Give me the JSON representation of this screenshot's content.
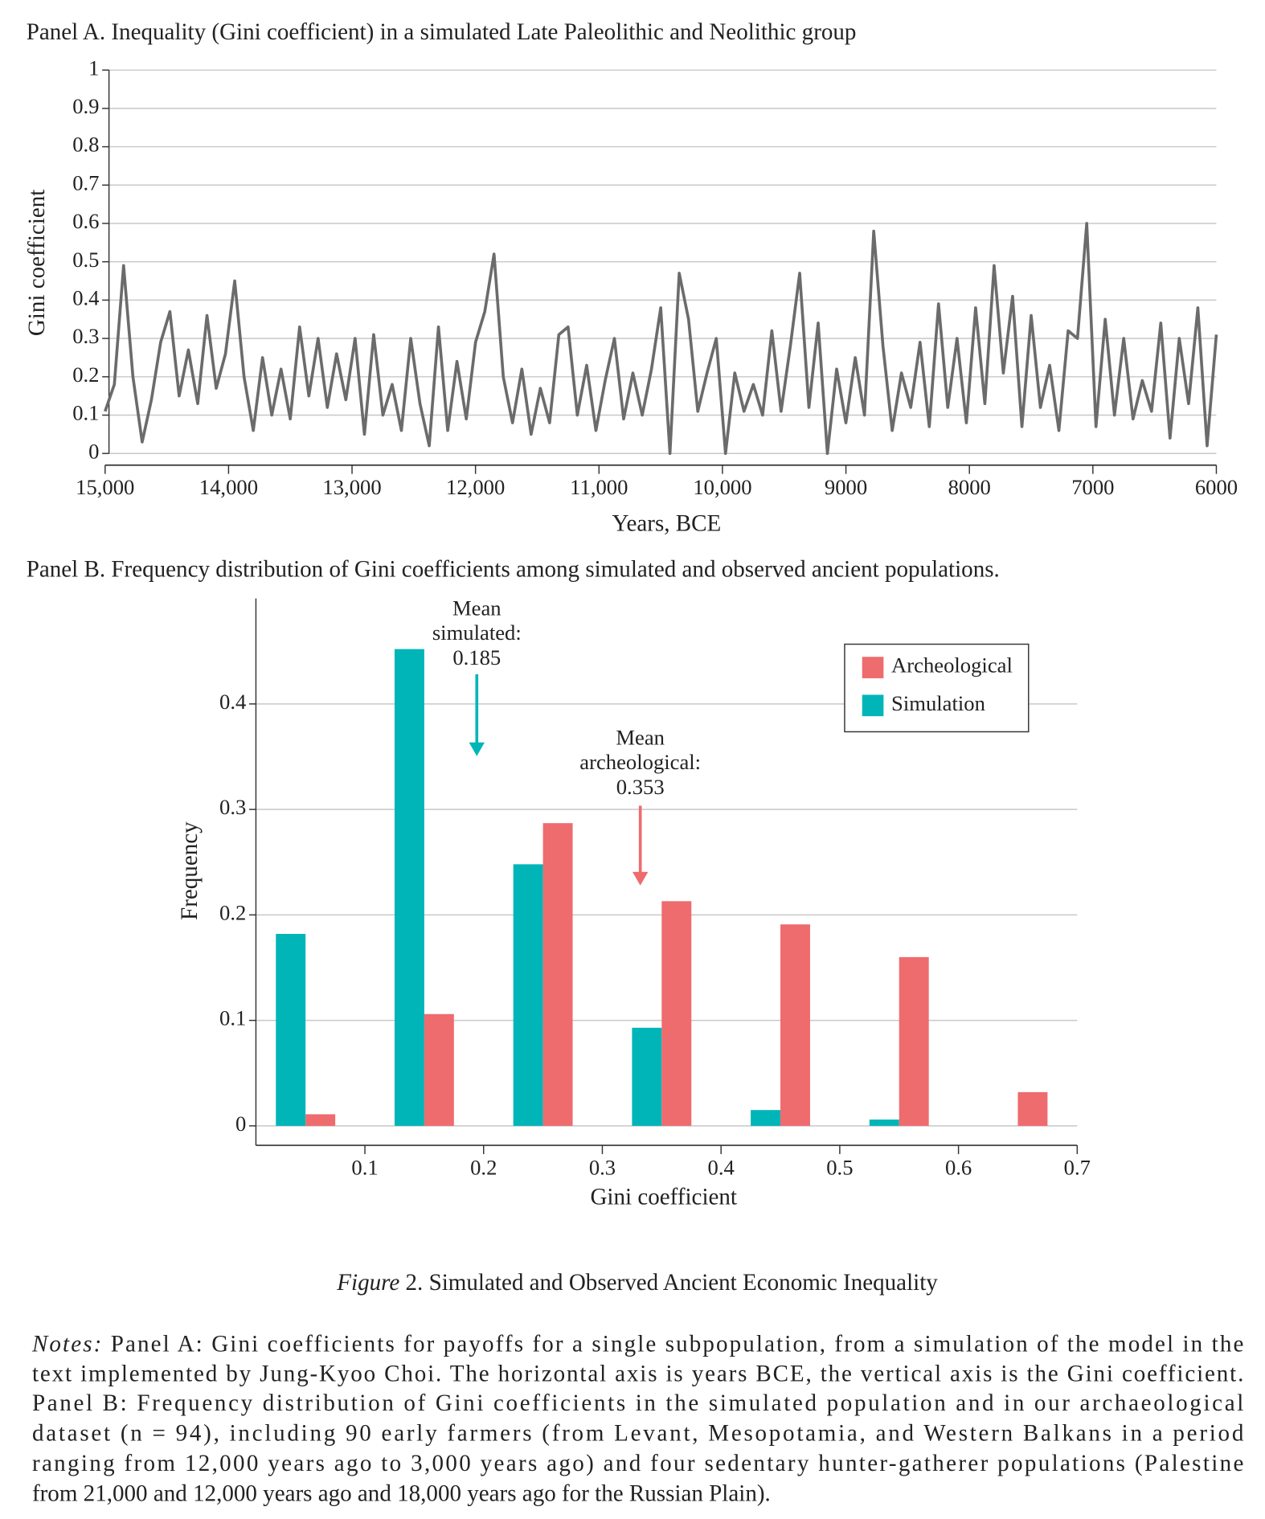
{
  "chart_data": [
    {
      "type": "line",
      "title": "Panel A. Inequality (Gini coefficient) in a simulated Late Paleolithic and Neolithic group",
      "y_label": "Gini coefficient",
      "x_label": "Years, BCE",
      "x": [
        15000,
        14925,
        14850,
        14775,
        14700,
        14625,
        14550,
        14475,
        14400,
        14325,
        14250,
        14175,
        14100,
        14025,
        13950,
        13875,
        13800,
        13725,
        13650,
        13575,
        13500,
        13425,
        13350,
        13275,
        13200,
        13125,
        13050,
        12975,
        12900,
        12825,
        12750,
        12675,
        12600,
        12525,
        12450,
        12375,
        12300,
        12225,
        12150,
        12075,
        12000,
        11925,
        11850,
        11775,
        11700,
        11625,
        11550,
        11475,
        11400,
        11325,
        11250,
        11175,
        11100,
        11025,
        10950,
        10875,
        10800,
        10725,
        10650,
        10575,
        10500,
        10425,
        10350,
        10275,
        10200,
        10125,
        10050,
        9975,
        9900,
        9825,
        9750,
        9675,
        9600,
        9525,
        9450,
        9375,
        9300,
        9225,
        9150,
        9075,
        9000,
        8925,
        8850,
        8775,
        8700,
        8625,
        8550,
        8475,
        8400,
        8325,
        8250,
        8175,
        8100,
        8025,
        7950,
        7875,
        7800,
        7725,
        7650,
        7575,
        7500,
        7425,
        7350,
        7275,
        7200,
        7125,
        7050,
        6975,
        6900,
        6825,
        6750,
        6675,
        6600,
        6525,
        6450,
        6375,
        6300,
        6225,
        6150,
        6075,
        6000
      ],
      "values": [
        0.11,
        0.18,
        0.49,
        0.2,
        0.03,
        0.14,
        0.29,
        0.37,
        0.15,
        0.27,
        0.13,
        0.36,
        0.17,
        0.26,
        0.45,
        0.2,
        0.06,
        0.25,
        0.1,
        0.22,
        0.09,
        0.33,
        0.15,
        0.3,
        0.12,
        0.26,
        0.14,
        0.3,
        0.05,
        0.31,
        0.1,
        0.18,
        0.06,
        0.3,
        0.13,
        0.02,
        0.33,
        0.06,
        0.24,
        0.09,
        0.29,
        0.37,
        0.52,
        0.2,
        0.08,
        0.22,
        0.05,
        0.17,
        0.08,
        0.31,
        0.33,
        0.1,
        0.23,
        0.06,
        0.19,
        0.3,
        0.09,
        0.21,
        0.1,
        0.22,
        0.38,
        0,
        0.47,
        0.35,
        0.11,
        0.21,
        0.3,
        0,
        0.21,
        0.11,
        0.18,
        0.1,
        0.32,
        0.11,
        0.28,
        0.47,
        0.12,
        0.34,
        0,
        0.22,
        0.08,
        0.25,
        0.1,
        0.58,
        0.28,
        0.06,
        0.21,
        0.12,
        0.29,
        0.07,
        0.39,
        0.12,
        0.3,
        0.08,
        0.38,
        0.13,
        0.49,
        0.21,
        0.41,
        0.07,
        0.36,
        0.12,
        0.23,
        0.06,
        0.32,
        0.3,
        0.6,
        0.07,
        0.35,
        0.1,
        0.3,
        0.09,
        0.19,
        0.11,
        0.34,
        0.04,
        0.3,
        0.13,
        0.38,
        0.02,
        0.31
      ],
      "color": "#6b6b6b",
      "xlim": [
        15000,
        6000
      ],
      "xticks": [
        {
          "value": 15000,
          "label": "15,000"
        },
        {
          "value": 14000,
          "label": "14,000"
        },
        {
          "value": 13000,
          "label": "13,000"
        },
        {
          "value": 12000,
          "label": "12,000"
        },
        {
          "value": 11000,
          "label": "11,000"
        },
        {
          "value": 10000,
          "label": "10,000"
        },
        9000,
        8000,
        7000,
        6000
      ],
      "ylim": [
        0,
        1
      ],
      "yticks": [
        0,
        0.1,
        0.2,
        0.3,
        0.4,
        0.5,
        0.6,
        0.7,
        0.8,
        0.9,
        1
      ],
      "grid": true
    },
    {
      "type": "bar",
      "title": "Panel B. Frequency distribution of Gini coefficients among simulated and observed ancient populations.",
      "y_label": "Frequency",
      "x_label": "Gini coefficient",
      "x": [
        0.05,
        0.15,
        0.25,
        0.35,
        0.45,
        0.55,
        0.65
      ],
      "series": [
        {
          "name": "Simulation",
          "color": "#00b5b8",
          "values": [
            0.182,
            0.452,
            0.248,
            0.093,
            0.015,
            0.006,
            0
          ]
        },
        {
          "name": "Archeological",
          "color": "#ee6b6e",
          "values": [
            0.011,
            0.106,
            0.287,
            0.213,
            0.191,
            0.16,
            0.032
          ]
        }
      ],
      "xlim": [
        0,
        0.7
      ],
      "xticks": [
        0.1,
        0.2,
        0.3,
        0.4,
        0.5,
        0.6,
        0.7
      ],
      "ylim": [
        0,
        0.5
      ],
      "yticks": [
        0,
        0.1,
        0.2,
        0.3,
        0.4
      ],
      "grid": true,
      "legend": "top-right",
      "annotations": [
        {
          "lines": [
            "Mean",
            "simulated:",
            "0.185"
          ],
          "color": "#00b5b8"
        },
        {
          "lines": [
            "Mean",
            "archeological:",
            "0.353"
          ],
          "color": "#ee6b6e"
        }
      ]
    }
  ],
  "caption": {
    "label": "Figure",
    "text": "2. Simulated and Observed Ancient Economic Inequality"
  },
  "notes": {
    "label": "Notes:",
    "lines": [
      "Panel A: Gini coefficients for payoffs for a single subpopulation, from a simulation of the model in the",
      "text implemented by Jung-Kyoo Choi. The horizontal axis is years BCE, the vertical axis is the Gini coefficient.",
      "Panel B: Frequency distribution of Gini coefficients in the simulated population and in our archaeological",
      "dataset (n = 94), including 90 early farmers (from Levant, Mesopotamia, and Western Balkans in a period",
      "ranging from 12,000 years ago to 3,000 years ago) and four sedentary hunter-gatherer populations (Palestine",
      "from 21,000 and 12,000 years ago and 18,000 years ago for the Russian Plain)."
    ]
  }
}
